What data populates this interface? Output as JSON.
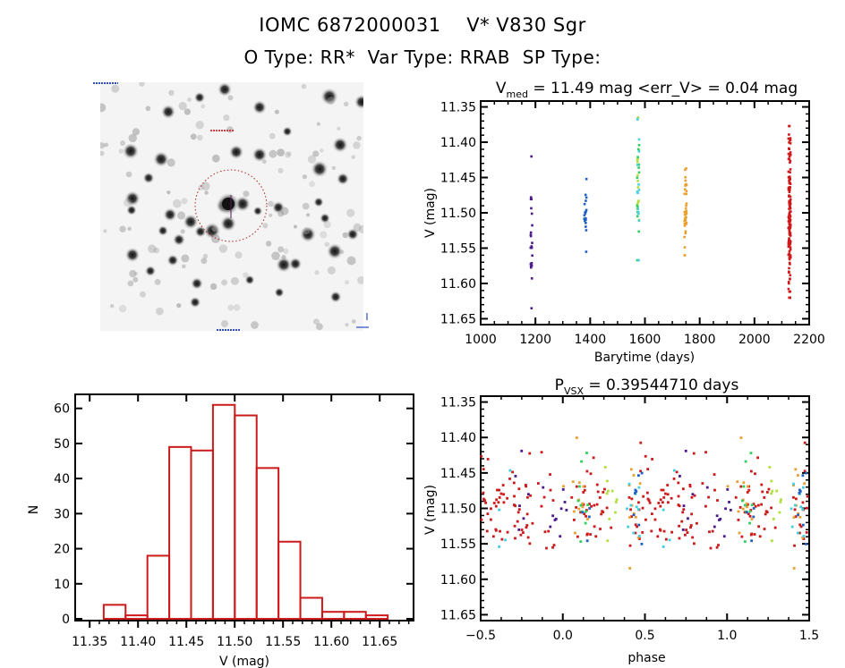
{
  "header": {
    "object_id": "IOMC 6872000031",
    "star_name": "V* V830 Sgr",
    "o_type_label": "O Type:",
    "o_type": "RR*",
    "var_type_label": "Var Type:",
    "var_type": "RRAB",
    "sp_type_label": "SP Type:",
    "sp_type": ""
  },
  "finder_image": {
    "description": "Inverted grayscale star field finder chart with red dotted circle marking target",
    "marker": "red dotted circle"
  },
  "colors": {
    "season1": "#4a1a8a",
    "season2": "#2060c0",
    "season3a": "#40d0e0",
    "season3b": "#30d060",
    "season3c": "#b0e040",
    "season4": "#e8a030",
    "season5": "#cc1a1a",
    "histogram": "#cc1a1a"
  },
  "chart_data": [
    {
      "type": "scatter",
      "id": "light-curve",
      "title_main": "V",
      "title_sub": "med",
      "title_rest": " = 11.49 mag <err_V> = 0.04 mag",
      "xlabel": "Barytime (days)",
      "ylabel": "V (mag)",
      "xlim": [
        1000,
        2200
      ],
      "ylim": [
        11.65,
        11.35
      ],
      "y_inverted": true,
      "xticks": [
        "1000",
        "1200",
        "1400",
        "1600",
        "1800",
        "2000",
        "2200"
      ],
      "yticks": [
        "11.35",
        "11.40",
        "11.45",
        "11.50",
        "11.55",
        "11.60",
        "11.65"
      ],
      "series": [
        {
          "name": "season1",
          "color_key": "season1",
          "x": 1185,
          "y_min": 11.42,
          "y_max": 11.635,
          "count": 22
        },
        {
          "name": "season2",
          "color_key": "season2",
          "x": 1382,
          "y_min": 11.452,
          "y_max": 11.555,
          "count": 18
        },
        {
          "name": "season3",
          "color_key": "season3a",
          "x": 1575,
          "y_min": 11.365,
          "y_max": 11.567,
          "count": 40
        },
        {
          "name": "season4",
          "color_key": "season4",
          "x": 1748,
          "y_min": 11.437,
          "y_max": 11.56,
          "count": 35
        },
        {
          "name": "season5",
          "color_key": "season5",
          "x": 2128,
          "y_min": 11.377,
          "y_max": 11.62,
          "count": 150
        }
      ]
    },
    {
      "type": "bar",
      "id": "histogram",
      "xlabel": "V (mag)",
      "ylabel": "N",
      "xlim": [
        11.335,
        11.685
      ],
      "ylim": [
        -0.5,
        64
      ],
      "xticks": [
        "11.35",
        "11.40",
        "11.45",
        "11.50",
        "11.55",
        "11.60",
        "11.65"
      ],
      "yticks": [
        "0",
        "10",
        "20",
        "30",
        "40",
        "50",
        "60"
      ],
      "bin_start": 11.3645,
      "bin_width": 0.0226,
      "values": [
        4,
        1,
        18,
        49,
        48,
        61,
        58,
        43,
        22,
        6,
        2,
        2,
        1
      ]
    },
    {
      "type": "scatter",
      "id": "phased-curve",
      "title_main": "P",
      "title_sub": "VSX",
      "title_rest": " = 0.39544710 days",
      "period_days": 0.3954471,
      "xlabel": "phase",
      "ylabel": "V (mag)",
      "xlim": [
        -0.5,
        1.5
      ],
      "ylim": [
        11.65,
        11.35
      ],
      "y_inverted": true,
      "xticks": [
        "−0.5",
        "0.0",
        "0.5",
        "1.0",
        "1.5"
      ],
      "yticks": [
        "11.35",
        "11.40",
        "11.45",
        "11.50",
        "11.55",
        "11.60",
        "11.65"
      ]
    }
  ]
}
